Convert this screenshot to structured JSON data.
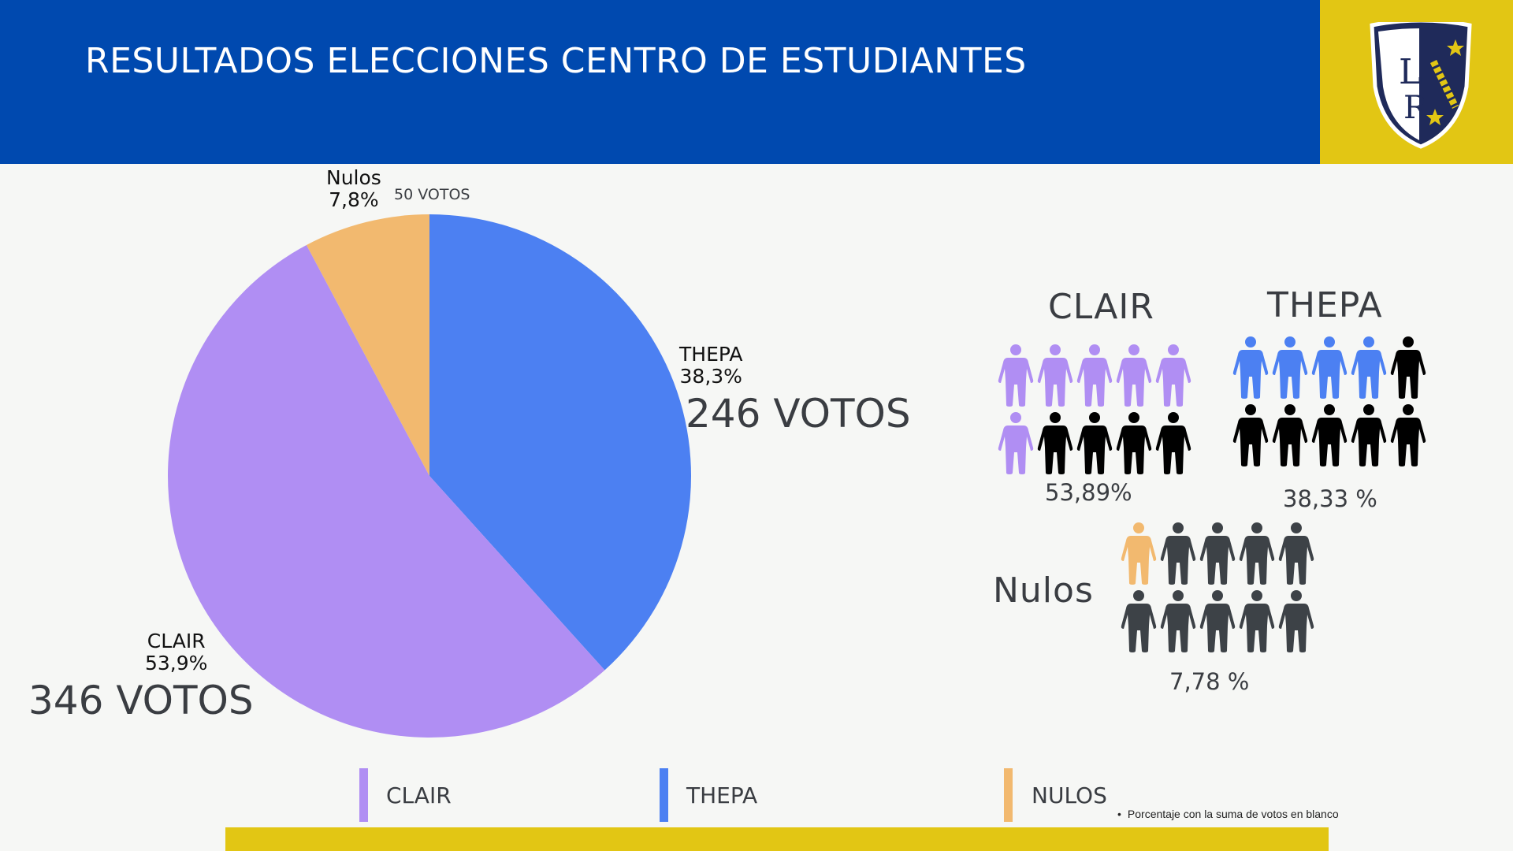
{
  "header": {
    "title": "RESULTADOS ELECCIONES CENTRO DE ESTUDIANTES",
    "background": "#0049af",
    "accent": "#e2c614"
  },
  "logo": {
    "text": "LR"
  },
  "chart_data": {
    "type": "pie",
    "slices": [
      {
        "name": "THEPA",
        "label": "THEPA",
        "percent_label": "38,3%",
        "votes_label": "246 VOTOS",
        "value": 246,
        "color": "#4c80f2"
      },
      {
        "name": "CLAIR",
        "label": "CLAIR",
        "percent_label": "53,9%",
        "votes_label": "346 VOTOS",
        "value": 346,
        "color": "#b08ef3"
      },
      {
        "name": "Nulos",
        "label": "Nulos",
        "percent_label": "7,8%",
        "votes_label": "50 VOTOS",
        "value": 50,
        "color": "#f2b96f"
      }
    ],
    "legend": [
      {
        "label": "CLAIR",
        "color": "#b08ef3"
      },
      {
        "label": "THEPA",
        "color": "#4c80f2"
      },
      {
        "label": "NULOS",
        "color": "#f2b96f"
      }
    ]
  },
  "pictograms": {
    "clair": {
      "title": "CLAIR",
      "percent": "53,89%",
      "value": 53.89,
      "filled": 6,
      "total": 10,
      "color": "#b08ef3",
      "rest_color": "#000000"
    },
    "thepa": {
      "title": "THEPA",
      "percent": "38,33 %",
      "value": 38.33,
      "filled": 4,
      "total": 10,
      "color": "#4c80f2",
      "rest_color": "#000000"
    },
    "nulos": {
      "title": "Nulos",
      "percent": "7,78 %",
      "value": 7.78,
      "filled": 1,
      "total": 10,
      "color": "#f2b96f",
      "rest_color": "#3d4247"
    }
  },
  "note": "Porcentaje con la suma de votos en blanco"
}
